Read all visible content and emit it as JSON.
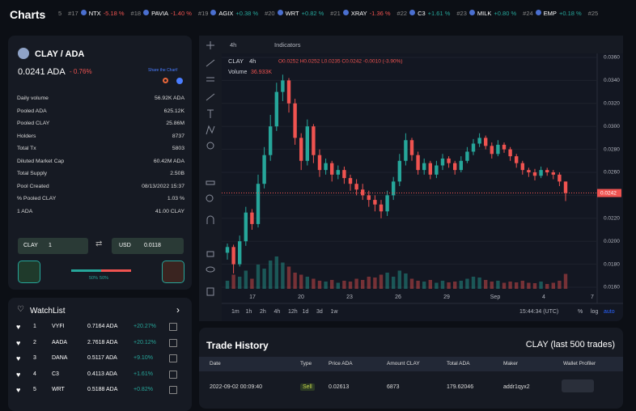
{
  "header": {
    "title": "Charts",
    "ticker_left": "5",
    "ticker": [
      {
        "rank": "#17",
        "symbol": "NTX",
        "change": "-5.18 %"
      },
      {
        "rank": "#18",
        "symbol": "PAVIA",
        "change": "-1.40 %"
      },
      {
        "rank": "#19",
        "symbol": "AGIX",
        "change": "+0.38 %"
      },
      {
        "rank": "#20",
        "symbol": "WRT",
        "change": "+0.82 %"
      },
      {
        "rank": "#21",
        "symbol": "XRAY",
        "change": "-1.36 %"
      },
      {
        "rank": "#22",
        "symbol": "C3",
        "change": "+1.61 %"
      },
      {
        "rank": "#23",
        "symbol": "MILK",
        "change": "+0.80 %"
      },
      {
        "rank": "#24",
        "symbol": "EMP",
        "change": "+0.18 %"
      }
    ],
    "ticker_right": "#25"
  },
  "token": {
    "name": "CLAY / ADA",
    "price": "0.0241 ADA",
    "change": "- 0.76%",
    "share": "Share the Chart!",
    "stats": [
      [
        "Daily volume",
        "56.92K ADA"
      ],
      [
        "Pooled ADA",
        "625.12K"
      ],
      [
        "Pooled CLAY",
        "25.86M"
      ],
      [
        "Holders",
        "8737"
      ],
      [
        "Total Tx",
        "5803"
      ],
      [
        "Diluted Market Cap",
        "60.42M ADA"
      ],
      [
        "Total Supply",
        "2.50B"
      ],
      [
        "Pool Created",
        "08/13/2022 15:37"
      ],
      [
        "% Pooled CLAY",
        "1.03 %"
      ],
      [
        "1 ADA",
        "41.00 CLAY"
      ]
    ],
    "converter": {
      "from": "CLAY",
      "from_value": "1",
      "to": "USD",
      "to_value": "0.0118"
    },
    "ratio": {
      "values": [
        50,
        50
      ],
      "labels": [
        "50%",
        "50%"
      ]
    }
  },
  "watchlist": {
    "title": "WatchList",
    "rows": [
      [
        "1",
        "VYFI",
        "0.7164 ADA",
        "+20.27%"
      ],
      [
        "2",
        "AADA",
        "2.7618 ADA",
        "+20.12%"
      ],
      [
        "3",
        "DANA",
        "0.5117 ADA",
        "+9.10%"
      ],
      [
        "4",
        "C3",
        "0.4113 ADA",
        "+1.61%"
      ],
      [
        "5",
        "WRT",
        "0.5188 ADA",
        "+0.82%"
      ]
    ]
  },
  "chart_data": {
    "type": "candlestick",
    "interval": "4h",
    "indicators": "Indicators",
    "symbol": "CLAY",
    "legend_ohlc": "O0.0252 H0.0252 L0.0235 C0.0242 -0.0010 (-3.90%)",
    "volume_label": "Volume",
    "volume_value": "36.933K",
    "ylim": [
      0.016,
      0.036
    ],
    "yticks": [
      {
        "value": 0.036,
        "label": "0.0360"
      },
      {
        "value": 0.034,
        "label": "0.0340"
      },
      {
        "value": 0.032,
        "label": "0.0320"
      },
      {
        "value": 0.03,
        "label": "0.0300"
      },
      {
        "value": 0.028,
        "label": "0.0280"
      },
      {
        "value": 0.026,
        "label": "0.0260"
      },
      {
        "value": 0.024,
        "label": "0.0240"
      },
      {
        "value": 0.022,
        "label": "0.0220"
      },
      {
        "value": 0.02,
        "label": "0.0200"
      },
      {
        "value": 0.018,
        "label": "0.0180"
      },
      {
        "value": 0.016,
        "label": "0.0160"
      }
    ],
    "last_price": {
      "value": 0.0242,
      "label": "0.0242"
    },
    "up_color": "#26a69a",
    "down_color": "#ef5350",
    "volume_lim": [
      0,
      200
    ],
    "x_labels": [
      "17",
      "20",
      "23",
      "26",
      "29",
      "Sep",
      "4",
      "7"
    ],
    "candles": [
      [
        0.019,
        0.0198,
        0.0184,
        0.0195
      ],
      [
        0.0195,
        0.0197,
        0.0172,
        0.018
      ],
      [
        0.018,
        0.0205,
        0.0178,
        0.02
      ],
      [
        0.02,
        0.023,
        0.0196,
        0.0225
      ],
      [
        0.0225,
        0.0228,
        0.021,
        0.0215
      ],
      [
        0.0215,
        0.0258,
        0.0212,
        0.025
      ],
      [
        0.025,
        0.0282,
        0.0246,
        0.0275
      ],
      [
        0.0275,
        0.031,
        0.027,
        0.03
      ],
      [
        0.03,
        0.0338,
        0.0296,
        0.033
      ],
      [
        0.033,
        0.0345,
        0.0322,
        0.034
      ],
      [
        0.034,
        0.0342,
        0.0312,
        0.032
      ],
      [
        0.032,
        0.0324,
        0.0284,
        0.029
      ],
      [
        0.029,
        0.0294,
        0.0262,
        0.027
      ],
      [
        0.027,
        0.0306,
        0.0266,
        0.03
      ],
      [
        0.03,
        0.0302,
        0.0268,
        0.0275
      ],
      [
        0.0275,
        0.028,
        0.0256,
        0.0262
      ],
      [
        0.0262,
        0.0272,
        0.0258,
        0.0268
      ],
      [
        0.0268,
        0.027,
        0.0252,
        0.0258
      ],
      [
        0.0258,
        0.0266,
        0.0254,
        0.0262
      ],
      [
        0.0262,
        0.0265,
        0.025,
        0.0255
      ],
      [
        0.0255,
        0.0258,
        0.0244,
        0.025
      ],
      [
        0.025,
        0.0254,
        0.024,
        0.0245
      ],
      [
        0.0245,
        0.025,
        0.0236,
        0.024
      ],
      [
        0.024,
        0.0244,
        0.023,
        0.0236
      ],
      [
        0.0236,
        0.024,
        0.0226,
        0.0232
      ],
      [
        0.0232,
        0.0236,
        0.022,
        0.0226
      ],
      [
        0.0226,
        0.0244,
        0.0222,
        0.024
      ],
      [
        0.024,
        0.0256,
        0.0236,
        0.0252
      ],
      [
        0.0252,
        0.0276,
        0.0248,
        0.027
      ],
      [
        0.027,
        0.0294,
        0.0266,
        0.0288
      ],
      [
        0.0288,
        0.029,
        0.027,
        0.0275
      ],
      [
        0.0275,
        0.0278,
        0.0258,
        0.0262
      ],
      [
        0.0262,
        0.0272,
        0.0258,
        0.0268
      ],
      [
        0.0268,
        0.027,
        0.0254,
        0.0258
      ],
      [
        0.0258,
        0.027,
        0.0255,
        0.0266
      ],
      [
        0.0266,
        0.0276,
        0.0262,
        0.0272
      ],
      [
        0.0272,
        0.0274,
        0.0264,
        0.0268
      ],
      [
        0.0268,
        0.027,
        0.0258,
        0.0262
      ],
      [
        0.0262,
        0.0274,
        0.026,
        0.027
      ],
      [
        0.027,
        0.0282,
        0.0268,
        0.0278
      ],
      [
        0.0278,
        0.0289,
        0.0275,
        0.0285
      ],
      [
        0.0285,
        0.0294,
        0.0282,
        0.029
      ],
      [
        0.029,
        0.0292,
        0.028,
        0.0283
      ],
      [
        0.0283,
        0.0286,
        0.0272,
        0.0276
      ],
      [
        0.0276,
        0.0288,
        0.0274,
        0.0284
      ],
      [
        0.0284,
        0.0286,
        0.0277,
        0.028
      ],
      [
        0.028,
        0.0282,
        0.027,
        0.0274
      ],
      [
        0.0274,
        0.0276,
        0.0264,
        0.0268
      ],
      [
        0.0268,
        0.027,
        0.0258,
        0.0262
      ],
      [
        0.0262,
        0.0264,
        0.0256,
        0.026
      ],
      [
        0.026,
        0.0263,
        0.0253,
        0.0257
      ],
      [
        0.0257,
        0.0265,
        0.0255,
        0.0262
      ],
      [
        0.0262,
        0.0264,
        0.0257,
        0.026
      ],
      [
        0.026,
        0.0262,
        0.0254,
        0.0258
      ],
      [
        0.0258,
        0.026,
        0.0248,
        0.0252
      ],
      [
        0.0252,
        0.0252,
        0.0235,
        0.0242
      ]
    ],
    "volumes": [
      20,
      35,
      30,
      45,
      25,
      60,
      50,
      70,
      80,
      65,
      55,
      40,
      35,
      30,
      25,
      20,
      18,
      22,
      15,
      20,
      18,
      25,
      22,
      30,
      28,
      35,
      40,
      30,
      45,
      38,
      25,
      20,
      18,
      22,
      15,
      20,
      16,
      18,
      20,
      25,
      30,
      28,
      22,
      18,
      20,
      15,
      18,
      16,
      20,
      15,
      14,
      18,
      12,
      15,
      20,
      36.933
    ],
    "timeframes": [
      "1m",
      "1h",
      "2h",
      "4h",
      "12h",
      "1d",
      "3d",
      "1w"
    ],
    "clock": "15:44:34 (UTC)",
    "scale_options": [
      "%",
      "log",
      "auto"
    ]
  },
  "trades": {
    "title": "Trade History",
    "subtitle": "CLAY (last 500 trades)",
    "columns": [
      "Date",
      "Type",
      "Price ADA",
      "Amount CLAY",
      "Total ADA",
      "Maker",
      "Wallet Profiler"
    ],
    "rows": [
      [
        "2022-09-02 00:09:40",
        "Sell",
        "0.02613",
        "6873",
        "179.62046",
        "addr1qyx2"
      ]
    ]
  }
}
